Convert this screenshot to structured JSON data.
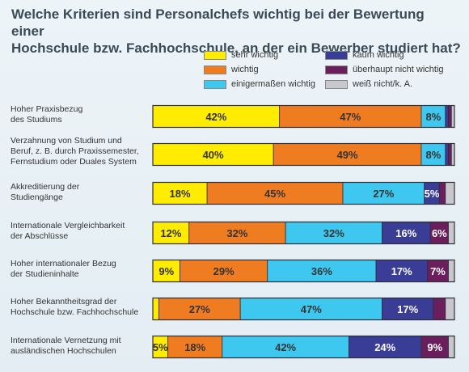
{
  "title_lines": [
    "Welche Kriterien sind Personalchefs wichtig bei der Bewertung einer",
    "Hochschule bzw. Fachhochschule, an der ein Bewerber studiert hat?"
  ],
  "legend": [
    {
      "label": "sehr wichtig",
      "color": "#ffec00"
    },
    {
      "label": "wichtig",
      "color": "#f07c22"
    },
    {
      "label": "einigermaßen wichtig",
      "color": "#3ec8ef"
    },
    {
      "label": "kaum wichtig",
      "color": "#3a3d96"
    },
    {
      "label": "überhaupt nicht wichtig",
      "color": "#6a1f5c"
    },
    {
      "label": "weiß nicht/k. A.",
      "color": "#c8c8cc"
    }
  ],
  "chart_data": {
    "type": "bar",
    "orientation": "horizontal",
    "stacked": true,
    "percent_stacked": true,
    "categories": [
      "Hoher Praxisbezug des Studiums",
      "Verzahnung von Studium und Beruf, z. B. durch Praxissemester, Fernstudium oder Duales System",
      "Akkreditierung der Studiengänge",
      "Internationale Vergleichbarkeit der Abschlüsse",
      "Hoher internationaler Bezug der Studieninhalte",
      "Hoher Bekanntheitsgrad der Hochschule bzw. Fachhochschule",
      "Internationale Vernetzung mit ausländischen Hochschulen"
    ],
    "category_label_lines": [
      [
        "Hoher Praxisbezug",
        "des Studiums"
      ],
      [
        "Verzahnung von Studium und",
        "Beruf, z. B. durch Praxissemester,",
        "Fernstudium oder Duales System"
      ],
      [
        "Akkreditierung der",
        "Studiengänge"
      ],
      [
        "Internationale Vergleichbarkeit",
        "der Abschlüsse"
      ],
      [
        "Hoher internationaler Bezug",
        "der Studieninhalte"
      ],
      [
        "Hoher Bekanntheitsgrad der",
        "Hochschule bzw. Fachhochschule"
      ],
      [
        "Internationale Vernetzung mit",
        "ausländischen Hochschulen"
      ]
    ],
    "series": [
      {
        "name": "sehr wichtig",
        "color": "#ffec00",
        "values": [
          42,
          40,
          18,
          12,
          9,
          2,
          5
        ]
      },
      {
        "name": "wichtig",
        "color": "#f07c22",
        "values": [
          47,
          49,
          45,
          32,
          29,
          27,
          18
        ]
      },
      {
        "name": "einigermaßen wichtig",
        "color": "#3ec8ef",
        "values": [
          8,
          8,
          27,
          32,
          36,
          47,
          42
        ]
      },
      {
        "name": "kaum wichtig",
        "color": "#3a3d96",
        "values": [
          1,
          1,
          5,
          16,
          17,
          17,
          24
        ]
      },
      {
        "name": "überhaupt nicht wichtig",
        "color": "#6a1f5c",
        "values": [
          1,
          1,
          2,
          6,
          7,
          4,
          9
        ]
      },
      {
        "name": "weiß nicht/k. A.",
        "color": "#c8c8cc",
        "values": [
          1,
          1,
          3,
          2,
          2,
          3,
          2
        ]
      }
    ],
    "data_labels": [
      [
        "42%",
        "47%",
        "8%",
        "",
        "",
        ""
      ],
      [
        "40%",
        "49%",
        "8%",
        "",
        "",
        ""
      ],
      [
        "18%",
        "45%",
        "27%",
        "5%",
        "",
        ""
      ],
      [
        "12%",
        "32%",
        "32%",
        "16%",
        "6%",
        ""
      ],
      [
        "9%",
        "29%",
        "36%",
        "17%",
        "7%",
        ""
      ],
      [
        "",
        "27%",
        "47%",
        "17%",
        "",
        ""
      ],
      [
        "5%",
        "18%",
        "42%",
        "24%",
        "9%",
        ""
      ]
    ],
    "xlim": [
      0,
      100
    ]
  }
}
